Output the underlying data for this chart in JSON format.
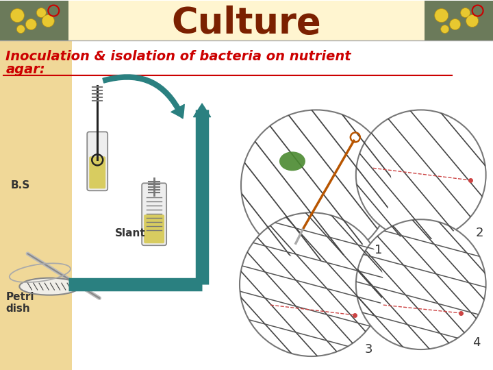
{
  "title": "Culture",
  "title_color": "#7B2000",
  "title_fontsize": 38,
  "header_bg": "#FFF5D0",
  "sidebar_bg": "#F0D898",
  "subtitle_line1": "Inoculation & isolation of bacteria on nutrient",
  "subtitle_line2": "agar:",
  "subtitle_color": "#CC0000",
  "subtitle_fontsize": 14,
  "label_bs": "B.S",
  "label_slant": "Slant",
  "label_petri": "Petri\ndish",
  "arrow_color": "#2A8080",
  "bg_color": "#FFFFFF",
  "line_color": "#555555",
  "dashed_color": "#CC4444"
}
